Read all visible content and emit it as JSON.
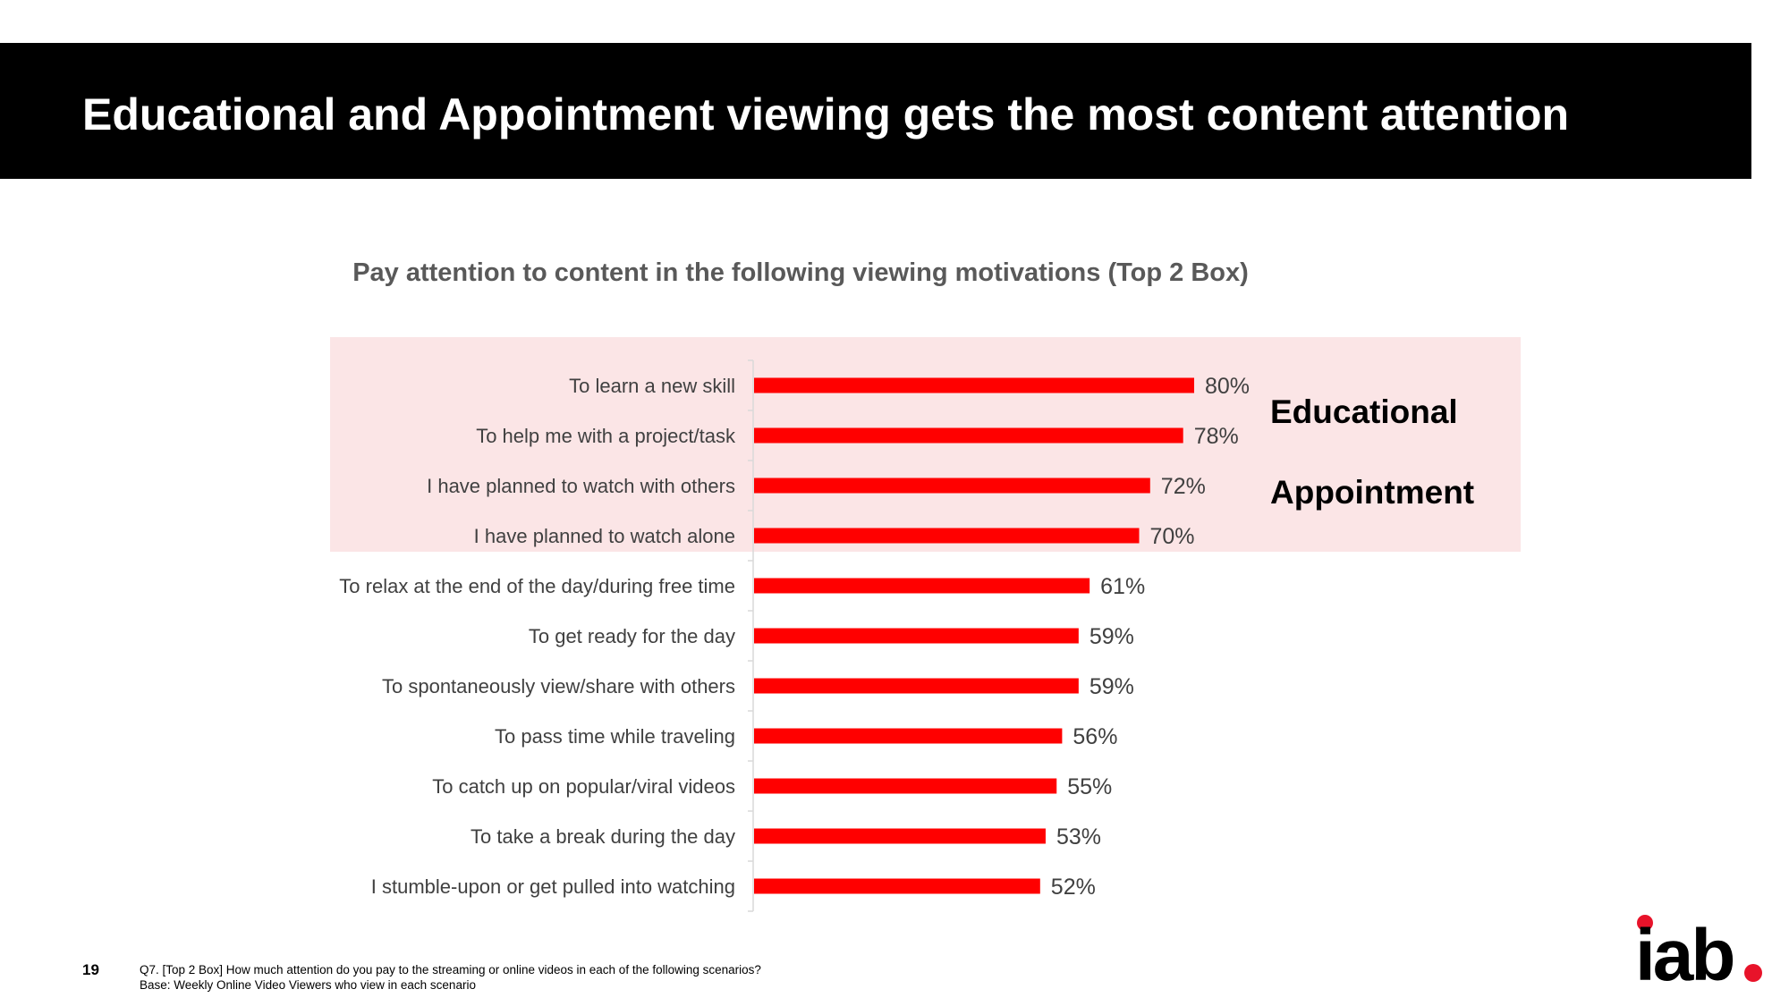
{
  "header": {
    "title": "Educational and Appointment viewing gets the most content attention"
  },
  "chart_data": {
    "type": "bar",
    "orientation": "horizontal",
    "title": "Pay attention to content in the following viewing motivations (Top 2 Box)",
    "categories": [
      "To learn a new skill",
      "To help me with a project/task",
      "I have planned to watch with others",
      "I have planned to watch alone",
      "To relax at the end of the day/during free time",
      "To get ready for the day",
      "To spontaneously view/share with others",
      "To pass time while traveling",
      "To catch up on popular/viral videos",
      "To take a break during the day",
      "I stumble-upon or get pulled into watching"
    ],
    "values": [
      80,
      78,
      72,
      70,
      61,
      59,
      59,
      56,
      55,
      53,
      52
    ],
    "value_labels": [
      "80%",
      "78%",
      "72%",
      "70%",
      "61%",
      "59%",
      "59%",
      "56%",
      "55%",
      "53%",
      "52%"
    ],
    "unit": "%",
    "xlim": [
      0,
      100
    ],
    "bar_color": "#ff0000",
    "highlight_color": "#fbe5e6",
    "groups": [
      {
        "label": "Educational",
        "categories": [
          "To learn a new skill",
          "To help me with a project/task"
        ]
      },
      {
        "label": "Appointment",
        "categories": [
          "I have planned to watch with others",
          "I have planned to watch alone"
        ]
      }
    ]
  },
  "footer": {
    "page_number": "19",
    "question": "Q7. [Top 2 Box] How much attention do you pay to the streaming or online videos in each of the following scenarios?",
    "base": "Base: Weekly Online Video Viewers who view in each scenario"
  },
  "brand": {
    "logo": "iab",
    "text_color": "#000000",
    "dot_color": "#e8132a"
  }
}
